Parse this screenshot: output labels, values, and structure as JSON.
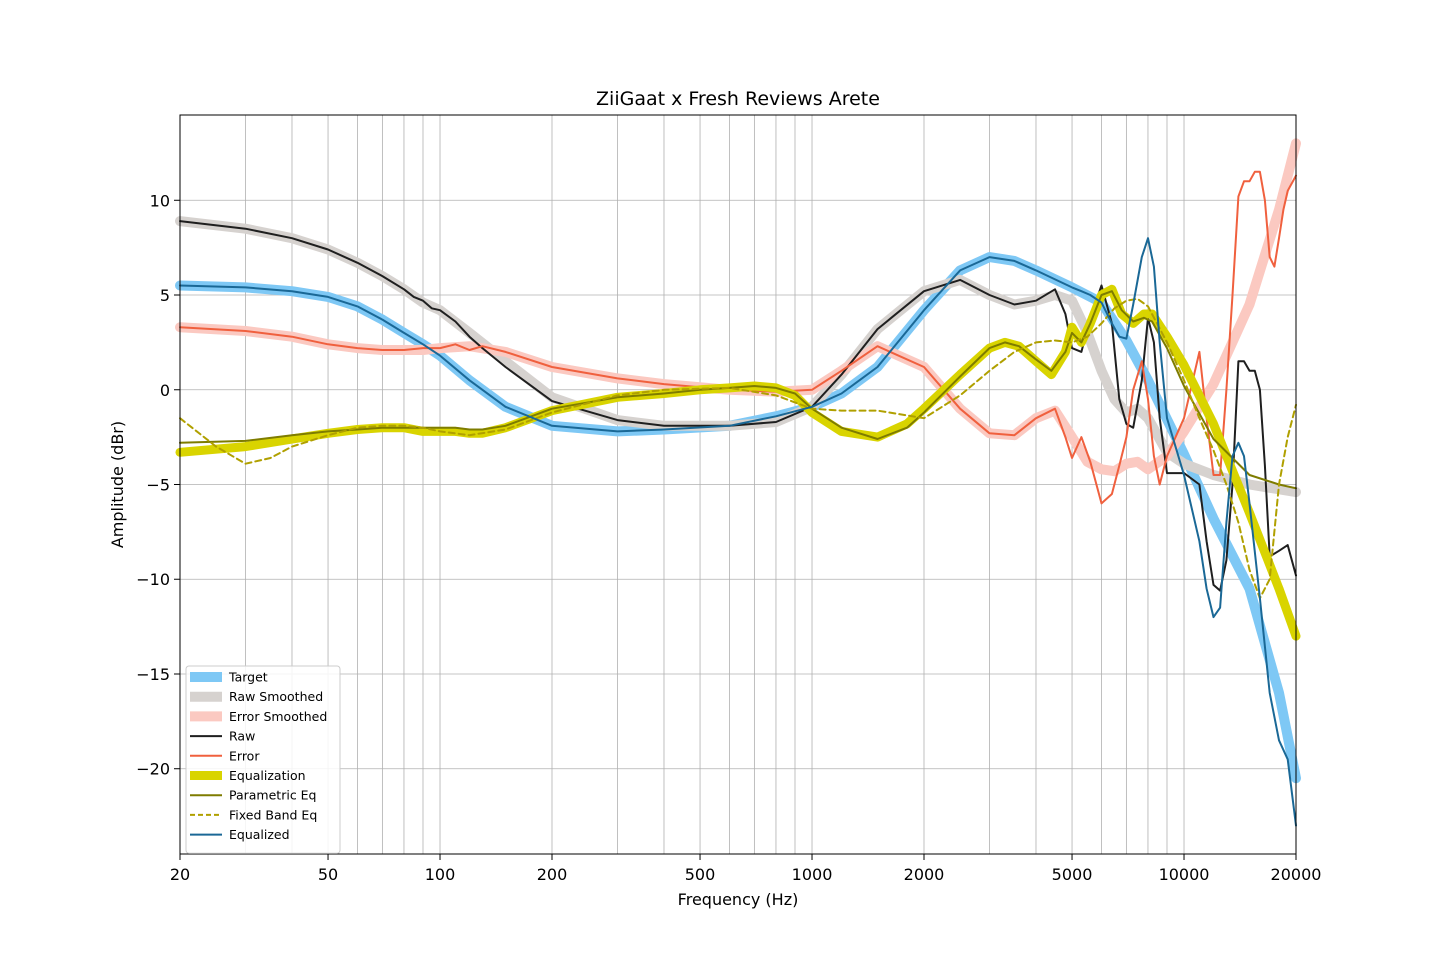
{
  "chart_data": {
    "type": "line",
    "title": "ZiiGaat x Fresh Reviews Arete",
    "xlabel": "Frequency (Hz)",
    "ylabel": "Amplitude (dBr)",
    "xscale": "log",
    "xlim": [
      20,
      20000
    ],
    "ylim": [
      -24.5,
      14.5
    ],
    "xticks": [
      20,
      50,
      100,
      200,
      500,
      1000,
      2000,
      5000,
      10000,
      20000
    ],
    "xtick_labels": [
      "20",
      "50",
      "100",
      "200",
      "500",
      "1000",
      "2000",
      "5000",
      "10000",
      "20000"
    ],
    "yticks": [
      10,
      5,
      0,
      -5,
      -10,
      -15,
      -20
    ],
    "ytick_labels": [
      "10",
      "5",
      "0",
      "−5",
      "−10",
      "−15",
      "−20"
    ],
    "grid": true,
    "legend_position": "lower-left",
    "series": [
      {
        "name": "Target",
        "color": "#7ec8f5",
        "style": "thick",
        "x": [
          20,
          30,
          40,
          50,
          60,
          70,
          80,
          90,
          100,
          120,
          150,
          200,
          300,
          400,
          600,
          800,
          1000,
          1200,
          1500,
          2000,
          2500,
          3000,
          3500,
          4000,
          5000,
          6000,
          7000,
          8000,
          10000,
          12000,
          15000,
          18000,
          20000
        ],
        "y": [
          5.5,
          5.4,
          5.2,
          4.9,
          4.4,
          3.7,
          3.0,
          2.4,
          1.8,
          0.5,
          -0.9,
          -1.9,
          -2.2,
          -2.1,
          -1.9,
          -1.4,
          -0.9,
          -0.2,
          1.2,
          4.2,
          6.3,
          7.0,
          6.8,
          6.3,
          5.4,
          4.6,
          2.6,
          0.5,
          -3.4,
          -6.8,
          -10.5,
          -16.0,
          -20.5
        ]
      },
      {
        "name": "Raw Smoothed",
        "color": "#d6d2cf",
        "style": "thick",
        "x": [
          20,
          30,
          40,
          50,
          60,
          70,
          80,
          90,
          100,
          120,
          150,
          200,
          300,
          400,
          600,
          800,
          1000,
          1200,
          1500,
          2000,
          2500,
          3000,
          3500,
          4000,
          4500,
          5000,
          5500,
          6000,
          6500,
          7000,
          7500,
          8000,
          9000,
          10000,
          12000,
          15000,
          20000
        ],
        "y": [
          8.9,
          8.5,
          8.0,
          7.4,
          6.7,
          6.0,
          5.3,
          4.6,
          4.2,
          3.0,
          1.5,
          -0.4,
          -1.6,
          -1.9,
          -1.9,
          -1.7,
          -0.9,
          0.8,
          3.2,
          5.2,
          5.8,
          5.0,
          4.5,
          4.7,
          5.0,
          4.7,
          3.0,
          1.0,
          -0.5,
          -1.2,
          -1.0,
          -1.5,
          -3.3,
          -3.9,
          -4.5,
          -5.0,
          -5.4
        ]
      },
      {
        "name": "Error Smoothed",
        "color": "#fbc9c1",
        "style": "thick",
        "x": [
          20,
          30,
          40,
          50,
          60,
          70,
          80,
          90,
          100,
          120,
          150,
          200,
          300,
          400,
          600,
          800,
          1000,
          1200,
          1500,
          2000,
          2500,
          3000,
          3500,
          4000,
          4500,
          5000,
          5500,
          6000,
          6500,
          7000,
          7500,
          8000,
          9000,
          10000,
          12000,
          15000,
          18000,
          20000
        ],
        "y": [
          3.3,
          3.1,
          2.8,
          2.4,
          2.2,
          2.1,
          2.1,
          2.1,
          2.2,
          2.3,
          2.0,
          1.2,
          0.6,
          0.3,
          0.0,
          -0.1,
          0.0,
          1.0,
          2.3,
          1.2,
          -1.0,
          -2.3,
          -2.4,
          -1.5,
          -1.1,
          -2.5,
          -3.8,
          -4.2,
          -4.3,
          -3.9,
          -3.8,
          -4.2,
          -3.5,
          -2.2,
          0.3,
          4.5,
          9.5,
          13.0
        ]
      },
      {
        "name": "Raw",
        "color": "#1f1f1f",
        "style": "thin",
        "x": [
          20,
          30,
          40,
          50,
          60,
          70,
          80,
          85,
          90,
          95,
          100,
          110,
          120,
          130,
          150,
          200,
          300,
          400,
          600,
          800,
          1000,
          1200,
          1500,
          2000,
          2500,
          3000,
          3500,
          4000,
          4500,
          4800,
          5000,
          5300,
          5600,
          6000,
          6400,
          6700,
          7000,
          7300,
          7700,
          8000,
          8300,
          8600,
          9000,
          10000,
          11000,
          11500,
          12000,
          12500,
          13000,
          13500,
          14000,
          14500,
          15000,
          15500,
          16000,
          16500,
          17000,
          18000,
          19000,
          20000
        ],
        "y": [
          8.9,
          8.5,
          8.0,
          7.4,
          6.7,
          6.0,
          5.3,
          4.9,
          4.7,
          4.3,
          4.2,
          3.6,
          2.8,
          2.2,
          1.2,
          -0.6,
          -1.6,
          -1.9,
          -1.9,
          -1.7,
          -0.9,
          0.8,
          3.2,
          5.2,
          5.8,
          5.0,
          4.5,
          4.7,
          5.3,
          4.0,
          2.2,
          2.0,
          3.8,
          5.5,
          3.5,
          -0.5,
          -1.8,
          -2.0,
          0.5,
          3.8,
          2.5,
          -1.5,
          -4.4,
          -4.4,
          -5.0,
          -8.0,
          -10.3,
          -10.6,
          -9.0,
          -5.0,
          1.5,
          1.5,
          1.0,
          1.0,
          0.0,
          -4.0,
          -8.8,
          -8.5,
          -8.2,
          -9.8
        ]
      },
      {
        "name": "Error",
        "color": "#f0603e",
        "style": "thin",
        "x": [
          20,
          30,
          40,
          50,
          60,
          70,
          80,
          90,
          100,
          110,
          120,
          130,
          150,
          200,
          300,
          400,
          600,
          800,
          1000,
          1200,
          1500,
          2000,
          2500,
          3000,
          3500,
          4000,
          4500,
          4800,
          5000,
          5300,
          5600,
          6000,
          6400,
          6700,
          7000,
          7300,
          7700,
          8000,
          8300,
          8600,
          9000,
          10000,
          11000,
          11500,
          12000,
          12500,
          13000,
          13500,
          14000,
          14500,
          15000,
          15500,
          16000,
          16500,
          17000,
          17500,
          18000,
          18500,
          19000,
          20000
        ],
        "y": [
          3.3,
          3.1,
          2.8,
          2.4,
          2.2,
          2.1,
          2.1,
          2.2,
          2.2,
          2.4,
          2.1,
          2.3,
          2.0,
          1.2,
          0.6,
          0.3,
          0.0,
          -0.1,
          0.0,
          1.0,
          2.3,
          1.2,
          -1.0,
          -2.3,
          -2.4,
          -1.5,
          -1.0,
          -2.5,
          -3.6,
          -2.5,
          -3.8,
          -6.0,
          -5.5,
          -4.0,
          -2.5,
          0.0,
          1.5,
          -0.5,
          -3.5,
          -5.0,
          -3.5,
          -1.5,
          2.0,
          -1.5,
          -4.5,
          -4.5,
          0.0,
          5.0,
          10.2,
          11.0,
          11.0,
          11.5,
          11.5,
          10.0,
          7.0,
          6.5,
          8.0,
          9.5,
          10.5,
          11.3
        ]
      },
      {
        "name": "Equalization",
        "color": "#d9d400",
        "style": "thick",
        "x": [
          20,
          30,
          40,
          50,
          60,
          70,
          80,
          90,
          100,
          110,
          120,
          130,
          150,
          200,
          300,
          400,
          500,
          600,
          700,
          800,
          900,
          1000,
          1200,
          1500,
          1800,
          2000,
          2500,
          3000,
          3300,
          3600,
          4000,
          4400,
          4800,
          5000,
          5300,
          5600,
          6000,
          6400,
          6800,
          7300,
          7800,
          8200,
          9000,
          10000,
          12000,
          15000,
          18000,
          20000
        ],
        "y": [
          -3.3,
          -3.0,
          -2.6,
          -2.3,
          -2.1,
          -2.0,
          -2.0,
          -2.2,
          -2.2,
          -2.2,
          -2.3,
          -2.3,
          -2.0,
          -1.1,
          -0.4,
          -0.2,
          0.0,
          0.1,
          0.2,
          0.1,
          -0.3,
          -1.2,
          -2.2,
          -2.5,
          -1.8,
          -1.0,
          0.8,
          2.2,
          2.5,
          2.3,
          1.5,
          0.8,
          2.0,
          3.3,
          2.5,
          3.5,
          5.0,
          5.3,
          4.0,
          3.5,
          4.0,
          4.0,
          2.8,
          1.3,
          -1.8,
          -6.5,
          -10.5,
          -13.0
        ]
      },
      {
        "name": "Parametric Eq",
        "color": "#7e7c00",
        "style": "thin",
        "x": [
          20,
          30,
          40,
          50,
          60,
          70,
          80,
          90,
          100,
          110,
          120,
          130,
          150,
          200,
          300,
          400,
          500,
          600,
          700,
          800,
          900,
          1000,
          1200,
          1500,
          1800,
          2000,
          2500,
          3000,
          3300,
          3600,
          4000,
          4400,
          4800,
          5000,
          5300,
          5600,
          6000,
          6400,
          6800,
          7300,
          7800,
          8200,
          9000,
          10000,
          12000,
          15000,
          18000,
          20000
        ],
        "y": [
          -2.8,
          -2.7,
          -2.4,
          -2.2,
          -2.1,
          -2.0,
          -2.0,
          -2.0,
          -2.0,
          -2.0,
          -2.1,
          -2.1,
          -1.9,
          -1.0,
          -0.4,
          -0.2,
          0.0,
          0.1,
          0.2,
          0.1,
          -0.2,
          -1.0,
          -2.0,
          -2.6,
          -2.0,
          -1.2,
          0.7,
          2.2,
          2.5,
          2.3,
          1.6,
          1.0,
          2.0,
          3.0,
          2.5,
          3.5,
          5.0,
          5.2,
          4.2,
          3.6,
          3.8,
          3.6,
          2.2,
          0.2,
          -2.6,
          -4.5,
          -5.0,
          -5.2
        ]
      },
      {
        "name": "Fixed Band Eq",
        "color": "#b0a000",
        "style": "dashed",
        "x": [
          20,
          25,
          30,
          35,
          40,
          50,
          60,
          70,
          80,
          90,
          100,
          120,
          150,
          200,
          300,
          400,
          600,
          800,
          1000,
          1200,
          1500,
          2000,
          2500,
          3000,
          3500,
          4000,
          4500,
          5000,
          5500,
          6000,
          6500,
          7000,
          7500,
          8000,
          9000,
          10000,
          11000,
          12000,
          13000,
          14000,
          15000,
          16000,
          17000,
          18000,
          19000,
          20000
        ],
        "y": [
          -1.5,
          -3.0,
          -3.9,
          -3.6,
          -3.0,
          -2.4,
          -2.0,
          -1.9,
          -1.9,
          -2.0,
          -2.2,
          -2.4,
          -2.1,
          -1.2,
          -0.3,
          0.0,
          0.1,
          -0.3,
          -1.0,
          -1.1,
          -1.1,
          -1.5,
          -0.3,
          1.0,
          2.0,
          2.5,
          2.6,
          2.5,
          2.8,
          3.5,
          4.3,
          4.7,
          4.8,
          4.4,
          2.5,
          0.5,
          -1.5,
          -3.2,
          -5.0,
          -7.0,
          -9.5,
          -11.0,
          -10.0,
          -5.0,
          -2.5,
          -0.8
        ]
      },
      {
        "name": "Equalized",
        "color": "#1a6896",
        "style": "thin",
        "x": [
          20,
          30,
          40,
          50,
          60,
          70,
          80,
          90,
          100,
          120,
          150,
          200,
          300,
          400,
          600,
          800,
          1000,
          1200,
          1500,
          2000,
          2500,
          3000,
          3500,
          4000,
          5000,
          5300,
          5600,
          6000,
          6400,
          6700,
          7000,
          7300,
          7700,
          8000,
          8300,
          8600,
          9000,
          10000,
          11000,
          11500,
          12000,
          12500,
          13000,
          13500,
          14000,
          14500,
          15000,
          16000,
          17000,
          18000,
          19000,
          20000
        ],
        "y": [
          5.5,
          5.4,
          5.2,
          4.9,
          4.4,
          3.7,
          3.0,
          2.4,
          1.8,
          0.5,
          -0.9,
          -1.9,
          -2.2,
          -2.1,
          -1.9,
          -1.4,
          -0.9,
          -0.2,
          1.2,
          4.2,
          6.3,
          7.0,
          6.8,
          6.3,
          5.4,
          5.2,
          5.0,
          4.6,
          3.5,
          2.8,
          2.7,
          4.5,
          7.0,
          8.0,
          6.5,
          2.5,
          -1.5,
          -4.5,
          -8.0,
          -10.5,
          -12.0,
          -11.5,
          -7.0,
          -3.5,
          -2.8,
          -3.5,
          -6.0,
          -11.0,
          -16.0,
          -18.5,
          -19.5,
          -23.0
        ]
      }
    ]
  }
}
